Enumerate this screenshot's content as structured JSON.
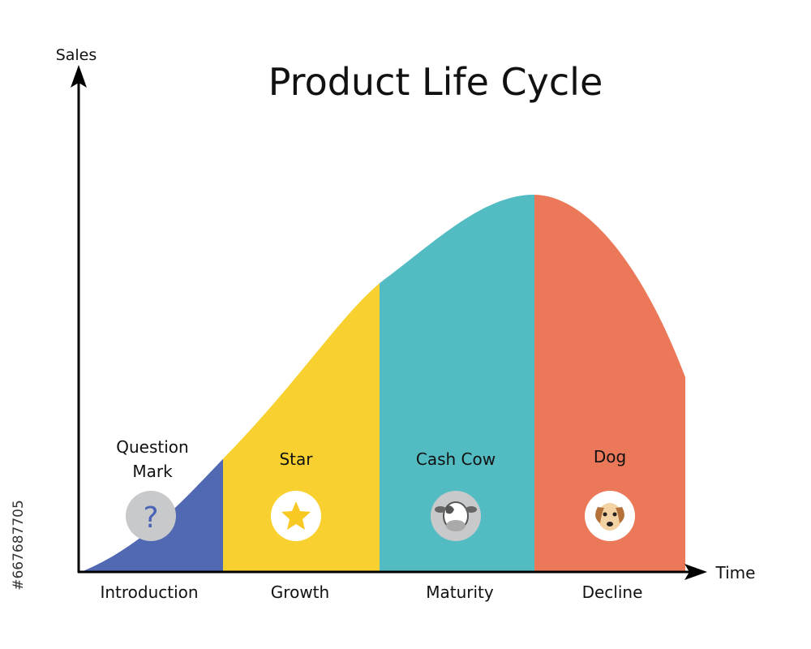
{
  "title": "Product Life Cycle",
  "axes": {
    "y_label": "Sales",
    "x_label": "Time"
  },
  "stages": [
    {
      "phase": "Introduction",
      "name_lines": [
        "Question",
        "Mark"
      ],
      "symbol": "?"
    },
    {
      "phase": "Growth",
      "name_lines": [
        "Star"
      ]
    },
    {
      "phase": "Maturity",
      "name_lines": [
        "Cash Cow"
      ]
    },
    {
      "phase": "Decline",
      "name_lines": [
        "Dog"
      ]
    }
  ],
  "watermark_id": "#667687705"
}
